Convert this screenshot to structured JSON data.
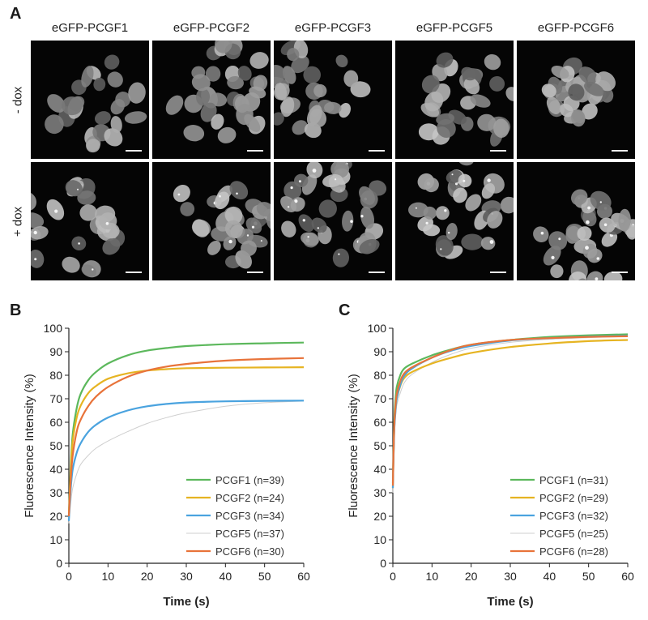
{
  "panels": {
    "a_letter": "A",
    "b_letter": "B",
    "c_letter": "C"
  },
  "micrographs": {
    "columns": [
      "eGFP-PCGF1",
      "eGFP-PCGF2",
      "eGFP-PCGF3",
      "eGFP-PCGF5",
      "eGFP-PCGF6"
    ],
    "rows": [
      "- dox",
      "+ dox"
    ]
  },
  "chart_data": [
    {
      "type": "line",
      "panel": "B",
      "xlabel": "Time (s)",
      "ylabel": "Fluorescence Intensity (%)",
      "xlim": [
        0,
        60
      ],
      "ylim": [
        0,
        100
      ],
      "xticks": [
        0,
        10,
        20,
        30,
        40,
        50,
        60
      ],
      "yticks": [
        0,
        10,
        20,
        30,
        40,
        50,
        60,
        70,
        80,
        90,
        100
      ],
      "grid": false,
      "legend_position": "bottom-right",
      "x": [
        0,
        0.5,
        1,
        2,
        3,
        5,
        7,
        10,
        15,
        20,
        25,
        30,
        40,
        50,
        60
      ],
      "series": [
        {
          "name": "PCGF1 (n=39)",
          "color": "#5cb85c",
          "values": [
            20,
            42,
            55,
            66,
            72,
            78,
            81.5,
            85,
            88.5,
            90.5,
            91.6,
            92.4,
            93.2,
            93.6,
            93.9
          ]
        },
        {
          "name": "PCGF2 (n=24)",
          "color": "#e6b422",
          "values": [
            20,
            40,
            52,
            62,
            67,
            72.5,
            75.5,
            78.5,
            80.8,
            82,
            82.6,
            83,
            83.2,
            83.3,
            83.4
          ]
        },
        {
          "name": "PCGF3 (n=34)",
          "color": "#4aa3df",
          "values": [
            18,
            32,
            40,
            47,
            51,
            56,
            59,
            62,
            65,
            66.8,
            67.8,
            68.4,
            68.9,
            69.1,
            69.2
          ]
        },
        {
          "name": "PCGF5 (n=37)",
          "color": "#cfcfcf",
          "values": [
            17,
            26,
            32,
            38,
            42,
            46,
            49,
            52,
            56,
            59.5,
            62,
            64,
            66.8,
            68.3,
            69
          ]
        },
        {
          "name": "PCGF6 (n=30)",
          "color": "#e8733a",
          "values": [
            20,
            36,
            46,
            56,
            61,
            67,
            71,
            75,
            79.3,
            82,
            83.7,
            84.8,
            86.2,
            86.9,
            87.3
          ]
        }
      ]
    },
    {
      "type": "line",
      "panel": "C",
      "xlabel": "Time (s)",
      "ylabel": "Fluorescence Intensity (%)",
      "xlim": [
        0,
        60
      ],
      "ylim": [
        0,
        100
      ],
      "xticks": [
        0,
        10,
        20,
        30,
        40,
        50,
        60
      ],
      "yticks": [
        0,
        10,
        20,
        30,
        40,
        50,
        60,
        70,
        80,
        90,
        100
      ],
      "grid": false,
      "legend_position": "bottom-right",
      "x": [
        0,
        0.3,
        0.6,
        1,
        2,
        3,
        5,
        10,
        15,
        20,
        30,
        40,
        50,
        60
      ],
      "series": [
        {
          "name": "PCGF1 (n=31)",
          "color": "#5cb85c",
          "values": [
            34,
            58,
            68,
            75,
            80.5,
            83,
            85,
            88.5,
            91,
            93,
            95,
            96.3,
            97,
            97.4
          ]
        },
        {
          "name": "PCGF2 (n=29)",
          "color": "#e6b422",
          "values": [
            32,
            55,
            64,
            70,
            76,
            79,
            81.5,
            85,
            87.5,
            89.5,
            92,
            93.5,
            94.5,
            95
          ]
        },
        {
          "name": "PCGF3 (n=32)",
          "color": "#4aa3df",
          "values": [
            32,
            54,
            63,
            70,
            76.5,
            80,
            83,
            87.5,
            90.5,
            92.5,
            94.8,
            95.8,
            96.4,
            96.8
          ]
        },
        {
          "name": "PCGF5 (n=25)",
          "color": "#cfcfcf",
          "values": [
            30,
            50,
            60,
            67,
            73,
            77,
            80.5,
            85.5,
            89,
            91.5,
            94,
            95.3,
            96,
            96.5
          ]
        },
        {
          "name": "PCGF6 (n=28)",
          "color": "#e8733a",
          "values": [
            33,
            56,
            65,
            72,
            78,
            81,
            83.5,
            87.5,
            90.8,
            93,
            95,
            95.8,
            96.3,
            96.6
          ]
        }
      ]
    }
  ]
}
